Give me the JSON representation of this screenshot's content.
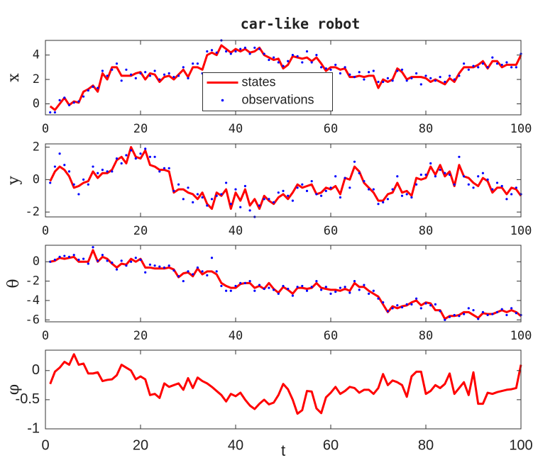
{
  "chart_data": [
    {
      "type": "line",
      "title": "car-like robot",
      "ylabel": "x",
      "legend": "center",
      "x": [
        1,
        2,
        3,
        4,
        5,
        6,
        7,
        8,
        9,
        10,
        11,
        12,
        13,
        14,
        15,
        16,
        17,
        18,
        19,
        20,
        21,
        22,
        23,
        24,
        25,
        26,
        27,
        28,
        29,
        30,
        31,
        32,
        33,
        34,
        35,
        36,
        37,
        38,
        39,
        40,
        41,
        42,
        43,
        44,
        45,
        46,
        47,
        48,
        49,
        50,
        51,
        52,
        53,
        54,
        55,
        56,
        57,
        58,
        59,
        60,
        61,
        62,
        63,
        64,
        65,
        66,
        67,
        68,
        69,
        70,
        71,
        72,
        73,
        74,
        75,
        76,
        77,
        78,
        79,
        80,
        81,
        82,
        83,
        84,
        85,
        86,
        87,
        88,
        89,
        90,
        91,
        92,
        93,
        94,
        95,
        96,
        97,
        98,
        99,
        100
      ],
      "xlim": [
        0,
        100
      ],
      "xticks": [
        0,
        20,
        40,
        60,
        80,
        100
      ],
      "ylim": [
        -0.9,
        5.2
      ],
      "yticks": [
        0,
        2,
        4
      ],
      "series": [
        {
          "name": "states",
          "color": "#ff0000",
          "mark": "line",
          "values": [
            -0.2,
            -0.5,
            0,
            0.5,
            -0.1,
            0.2,
            0.1,
            1.0,
            1.2,
            1.5,
            1.0,
            2.5,
            2.0,
            3.0,
            3.0,
            2.3,
            2.3,
            2.3,
            2.5,
            2.6,
            2.0,
            2.5,
            2.4,
            1.8,
            2.2,
            2.3,
            2.0,
            2.4,
            2.8,
            2.2,
            3.0,
            3.0,
            2.8,
            4.0,
            4.2,
            4.0,
            4.8,
            4.5,
            4.2,
            4.5,
            4.3,
            4.5,
            4.2,
            4.3,
            4.6,
            4.0,
            3.8,
            3.6,
            3.7,
            2.9,
            3.2,
            3.9,
            3.8,
            3.7,
            3.8,
            3.5,
            3.8,
            3.3,
            2.7,
            3.0,
            3.0,
            2.8,
            2.9,
            2.2,
            2.2,
            2.3,
            2.2,
            2.3,
            2.3,
            1.3,
            2.0,
            1.8,
            2.0,
            2.9,
            2.6,
            2.0,
            2.2,
            2.2,
            2.2,
            2.1,
            1.8,
            2.0,
            1.8,
            1.6,
            2.1,
            1.8,
            2.5,
            3.0,
            3.0,
            3.0,
            3.2,
            3.5,
            2.9,
            3.5,
            3.5,
            3.0,
            3.2,
            3.2,
            3.2,
            4.0
          ]
        },
        {
          "name": "observations",
          "color": "#0000ff",
          "mark": "dot",
          "values": [
            -0.7,
            -0.7,
            0.3,
            0.5,
            -0.1,
            0.1,
            0.2,
            0.6,
            1.1,
            1.4,
            1.3,
            2.7,
            2.3,
            2.8,
            3.3,
            1.9,
            2.8,
            2.4,
            2.1,
            2.5,
            2.6,
            2.3,
            2.7,
            2.0,
            2.4,
            2.5,
            2.2,
            2.3,
            3.0,
            2.1,
            3.3,
            3.3,
            2.5,
            4.3,
            4.4,
            4.2,
            5.2,
            4.3,
            4.1,
            4.3,
            4.5,
            4.6,
            4.1,
            4.6,
            4.5,
            4.1,
            3.6,
            3.8,
            3.4,
            3.1,
            3.5,
            4.0,
            3.9,
            3.4,
            4.3,
            3.4,
            4.0,
            3.0,
            2.9,
            2.8,
            3.2,
            2.5,
            3.0,
            2.4,
            2.2,
            2.6,
            2.0,
            2.6,
            2.7,
            1.8,
            1.8,
            2.1,
            1.9,
            2.7,
            2.8,
            1.9,
            2.1,
            2.5,
            1.6,
            2.3,
            2.1,
            1.9,
            2.2,
            1.8,
            2.3,
            2.0,
            2.3,
            3.3,
            2.8,
            3.1,
            3.0,
            3.3,
            3.0,
            3.8,
            3.3,
            3.2,
            3.4,
            3.0,
            3.0,
            4.1
          ]
        }
      ]
    },
    {
      "type": "line",
      "ylabel": "y",
      "x": [
        1,
        2,
        3,
        4,
        5,
        6,
        7,
        8,
        9,
        10,
        11,
        12,
        13,
        14,
        15,
        16,
        17,
        18,
        19,
        20,
        21,
        22,
        23,
        24,
        25,
        26,
        27,
        28,
        29,
        30,
        31,
        32,
        33,
        34,
        35,
        36,
        37,
        38,
        39,
        40,
        41,
        42,
        43,
        44,
        45,
        46,
        47,
        48,
        49,
        50,
        51,
        52,
        53,
        54,
        55,
        56,
        57,
        58,
        59,
        60,
        61,
        62,
        63,
        64,
        65,
        66,
        67,
        68,
        69,
        70,
        71,
        72,
        73,
        74,
        75,
        76,
        77,
        78,
        79,
        80,
        81,
        82,
        83,
        84,
        85,
        86,
        87,
        88,
        89,
        90,
        91,
        92,
        93,
        94,
        95,
        96,
        97,
        98,
        99,
        100
      ],
      "xlim": [
        0,
        100
      ],
      "xticks": [
        0,
        20,
        40,
        60,
        80,
        100
      ],
      "ylim": [
        -2.3,
        2.2
      ],
      "yticks": [
        -2,
        0,
        2
      ],
      "series": [
        {
          "color": "#ff0000",
          "mark": "line",
          "values": [
            -0.1,
            0.5,
            0.8,
            0.6,
            0.2,
            -0.5,
            -0.4,
            -0.2,
            -0.1,
            0.5,
            0.1,
            0.4,
            0.4,
            0.6,
            1.2,
            1.4,
            1.0,
            2.0,
            1.4,
            1.3,
            1.8,
            0.9,
            0.8,
            0.6,
            0.6,
            0.5,
            -0.8,
            -0.6,
            -0.6,
            -0.8,
            -0.9,
            -1.2,
            -0.8,
            -1.5,
            -1.8,
            -0.8,
            -1.0,
            -0.6,
            -1.8,
            -0.8,
            -1.3,
            -0.6,
            -1.6,
            -1.2,
            -1.8,
            -1.0,
            -1.3,
            -1.5,
            -1.1,
            -0.9,
            -1.2,
            -0.8,
            -0.3,
            -0.5,
            -0.4,
            -0.3,
            -0.9,
            -0.8,
            -0.5,
            -0.6,
            -0.4,
            -0.9,
            0.1,
            0.0,
            0.8,
            0.5,
            -0.2,
            -0.5,
            -0.8,
            -1.3,
            -1.3,
            -0.9,
            -0.8,
            -0.2,
            -0.8,
            -0.7,
            -1.0,
            0.1,
            0.0,
            0.1,
            0.8,
            0.3,
            0.9,
            0.2,
            0.5,
            -0.4,
            0.9,
            0.2,
            0.1,
            -0.2,
            -0.4,
            0.1,
            -0.1,
            -0.8,
            -0.5,
            -0.5,
            -0.9,
            -0.5,
            -0.6,
            -1.0
          ]
        },
        {
          "color": "#0000ff",
          "mark": "dot",
          "values": [
            -0.2,
            0.8,
            1.6,
            0.9,
            0.5,
            -0.3,
            -0.9,
            0.0,
            -0.3,
            0.8,
            0.4,
            0.6,
            0.5,
            0.5,
            1.3,
            1.0,
            1.5,
            1.8,
            1.3,
            1.6,
            1.9,
            1.4,
            1.4,
            0.5,
            0.7,
            0.7,
            -0.7,
            -0.3,
            -1.2,
            -0.5,
            -1.4,
            -0.9,
            -1.1,
            -1.6,
            -1.2,
            -1.0,
            -0.9,
            -0.2,
            -1.5,
            -0.6,
            -1.7,
            -0.4,
            -1.9,
            -2.3,
            -1.6,
            -1.2,
            -1.2,
            -1.4,
            -0.8,
            -0.7,
            -1.0,
            -1.3,
            -0.5,
            -0.3,
            -0.7,
            -0.1,
            -0.9,
            -1.0,
            -0.7,
            -0.5,
            0.2,
            -1.1,
            0.1,
            -0.5,
            1.1,
            0.4,
            -0.1,
            -0.6,
            -0.6,
            -1.5,
            -1.4,
            -1.2,
            -0.6,
            0.2,
            -1.0,
            -0.9,
            -1.1,
            -0.3,
            0.3,
            0.3,
            1.0,
            0.2,
            0.6,
            0.4,
            0.3,
            -0.3,
            1.4,
            0.2,
            -0.3,
            -0.5,
            0.2,
            0.4,
            0.0,
            -0.6,
            -0.2,
            -0.4,
            -1.2,
            -0.9,
            -0.5,
            -0.9
          ]
        }
      ]
    },
    {
      "type": "line",
      "ylabel": "θ",
      "x": [
        1,
        2,
        3,
        4,
        5,
        6,
        7,
        8,
        9,
        10,
        11,
        12,
        13,
        14,
        15,
        16,
        17,
        18,
        19,
        20,
        21,
        22,
        23,
        24,
        25,
        26,
        27,
        28,
        29,
        30,
        31,
        32,
        33,
        34,
        35,
        36,
        37,
        38,
        39,
        40,
        41,
        42,
        43,
        44,
        45,
        46,
        47,
        48,
        49,
        50,
        51,
        52,
        53,
        54,
        55,
        56,
        57,
        58,
        59,
        60,
        61,
        62,
        63,
        64,
        65,
        66,
        67,
        68,
        69,
        70,
        71,
        72,
        73,
        74,
        75,
        76,
        77,
        78,
        79,
        80,
        81,
        82,
        83,
        84,
        85,
        86,
        87,
        88,
        89,
        90,
        91,
        92,
        93,
        94,
        95,
        96,
        97,
        98,
        99,
        100
      ],
      "xlim": [
        0,
        100
      ],
      "xticks": [
        0,
        20,
        40,
        60,
        80,
        100
      ],
      "ylim": [
        -6.2,
        1.7
      ],
      "yticks": [
        -6,
        -4,
        -2,
        0
      ],
      "series": [
        {
          "color": "#ff0000",
          "mark": "line",
          "values": [
            0,
            0.1,
            0.4,
            0.3,
            0.4,
            0.5,
            0.0,
            0.0,
            0.0,
            1.2,
            0.0,
            0.5,
            0.3,
            -0.2,
            -0.6,
            -0.2,
            -0.3,
            0.3,
            0.0,
            0.3,
            -0.6,
            -0.6,
            -0.7,
            -0.7,
            -0.7,
            -0.6,
            -0.8,
            -1.6,
            -1.2,
            -1.1,
            -1.5,
            -0.7,
            -1.3,
            -1.0,
            -1.0,
            -1.3,
            -2.2,
            -2.5,
            -2.7,
            -2.7,
            -2.3,
            -2.2,
            -2.2,
            -2.7,
            -2.5,
            -2.8,
            -2.2,
            -2.8,
            -3.2,
            -2.6,
            -2.9,
            -3.3,
            -2.7,
            -2.7,
            -2.8,
            -2.7,
            -2.2,
            -2.7,
            -2.8,
            -2.9,
            -2.9,
            -3.0,
            -2.8,
            -3.0,
            -2.2,
            -2.6,
            -2.6,
            -3.0,
            -3.3,
            -3.6,
            -4.4,
            -5.2,
            -4.6,
            -4.8,
            -4.6,
            -4.5,
            -4.2,
            -4.0,
            -4.5,
            -4.2,
            -4.3,
            -5.0,
            -5.0,
            -5.9,
            -5.6,
            -5.6,
            -5.5,
            -5.2,
            -5.2,
            -5.5,
            -5.8,
            -5.3,
            -5.4,
            -5.4,
            -5.2,
            -5.0,
            -5.2,
            -5.0,
            -5.2,
            -5.6
          ]
        },
        {
          "color": "#0000ff",
          "mark": "dot",
          "values": [
            0.0,
            0.2,
            0.5,
            0.6,
            0.5,
            0.7,
            0.2,
            0.3,
            -0.2,
            1.5,
            0.1,
            0.7,
            0.1,
            -0.1,
            -0.8,
            0.1,
            -0.4,
            0.0,
            0.4,
            0.2,
            -1.1,
            -0.3,
            -0.4,
            -0.5,
            -0.6,
            -0.4,
            -0.9,
            -1.5,
            -2.0,
            -1.0,
            -1.3,
            -0.6,
            -1.0,
            -1.4,
            0.4,
            -1.0,
            -2.5,
            -3.0,
            -3.0,
            -2.5,
            -2.2,
            -2.2,
            -2.0,
            -3.0,
            -2.4,
            -2.8,
            -2.7,
            -2.9,
            -3.3,
            -2.5,
            -2.8,
            -3.5,
            -2.6,
            -2.5,
            -3.0,
            -2.6,
            -2.0,
            -2.9,
            -2.6,
            -3.3,
            -3.1,
            -2.7,
            -2.6,
            -3.2,
            -2.0,
            -2.9,
            -2.4,
            -3.3,
            -3.0,
            -3.8,
            -4.2,
            -5.1,
            -4.8,
            -4.5,
            -4.7,
            -4.4,
            -4.4,
            -3.8,
            -4.8,
            -4.3,
            -4.5,
            -4.4,
            -5.1,
            -6.0,
            -5.7,
            -5.5,
            -5.6,
            -5.4,
            -4.8,
            -5.0,
            -5.9,
            -5.2,
            -5.5,
            -5.4,
            -5.2,
            -4.9,
            -5.5,
            -4.8,
            -5.3,
            -5.5
          ]
        }
      ]
    },
    {
      "type": "line",
      "ylabel": "φ",
      "xlabel": "t",
      "x": [
        1,
        2,
        3,
        4,
        5,
        6,
        7,
        8,
        9,
        10,
        11,
        12,
        13,
        14,
        15,
        16,
        17,
        18,
        19,
        20,
        21,
        22,
        23,
        24,
        25,
        26,
        27,
        28,
        29,
        30,
        31,
        32,
        33,
        34,
        35,
        36,
        37,
        38,
        39,
        40,
        41,
        42,
        43,
        44,
        45,
        46,
        47,
        48,
        49,
        50,
        51,
        52,
        53,
        54,
        55,
        56,
        57,
        58,
        59,
        60,
        61,
        62,
        63,
        64,
        65,
        66,
        67,
        68,
        69,
        70,
        71,
        72,
        73,
        74,
        75,
        76,
        77,
        78,
        79,
        80,
        81,
        82,
        83,
        84,
        85,
        86,
        87,
        88,
        89,
        90,
        91,
        92,
        93,
        94,
        95,
        96,
        97,
        98,
        99,
        100
      ],
      "xlim": [
        0,
        100
      ],
      "xticks": [
        0,
        20,
        40,
        60,
        80,
        100
      ],
      "ylim": [
        -1,
        0.35
      ],
      "yticks": [
        -1,
        -0.5,
        0
      ],
      "series": [
        {
          "color": "#ff0000",
          "mark": "line",
          "values": [
            -0.23,
            -0.02,
            0.05,
            0.15,
            0.1,
            0.28,
            0.1,
            0.12,
            -0.05,
            -0.05,
            -0.03,
            -0.18,
            -0.16,
            -0.15,
            -0.08,
            0.1,
            0.05,
            0.0,
            -0.15,
            -0.1,
            -0.15,
            -0.42,
            -0.4,
            -0.47,
            -0.22,
            -0.28,
            -0.25,
            -0.22,
            -0.33,
            -0.13,
            -0.3,
            -0.12,
            -0.18,
            -0.22,
            -0.28,
            -0.35,
            -0.42,
            -0.53,
            -0.4,
            -0.44,
            -0.38,
            -0.5,
            -0.6,
            -0.66,
            -0.57,
            -0.5,
            -0.58,
            -0.55,
            -0.42,
            -0.23,
            -0.32,
            -0.5,
            -0.74,
            -0.68,
            -0.35,
            -0.36,
            -0.65,
            -0.73,
            -0.46,
            -0.38,
            -0.28,
            -0.4,
            -0.35,
            -0.28,
            -0.3,
            -0.38,
            -0.33,
            -0.33,
            -0.4,
            -0.3,
            -0.06,
            -0.25,
            -0.17,
            -0.2,
            -0.25,
            -0.45,
            -0.1,
            -0.02,
            -0.02,
            -0.4,
            -0.35,
            -0.25,
            -0.3,
            -0.23,
            -0.05,
            -0.4,
            -0.3,
            -0.2,
            -0.42,
            -0.03,
            -0.57,
            -0.57,
            -0.38,
            -0.4,
            -0.37,
            -0.35,
            -0.33,
            -0.32,
            -0.3,
            0.1
          ]
        }
      ]
    }
  ]
}
